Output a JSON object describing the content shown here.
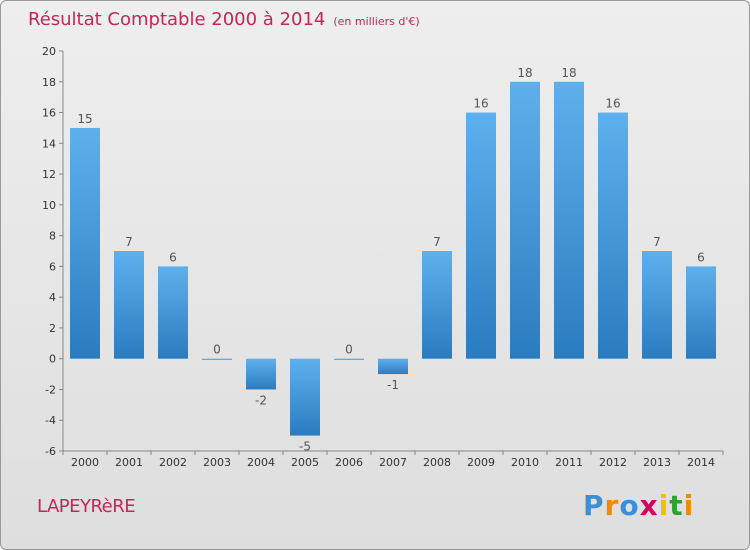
{
  "title": {
    "main": "Résultat Comptable 2000 à 2014",
    "unit": "(en milliers d'€)"
  },
  "commune": "LAPEYRèRE",
  "logo": {
    "text": "Proxiti",
    "letters": [
      "P",
      "r",
      "o",
      "x",
      "i",
      "t",
      "i"
    ],
    "colors": [
      "#3a8fd6",
      "#f08a00",
      "#3a8fd6",
      "#d4005b",
      "#f0c000",
      "#30a030",
      "#f08a00"
    ]
  },
  "colors": {
    "bar_top": "#5eb0ec",
    "bar_bottom": "#2a7cc0",
    "title": "#c0275a"
  },
  "chart_data": {
    "type": "bar",
    "title": "Résultat Comptable 2000 à 2014",
    "ylabel": "(en milliers d'€)",
    "xlabel": "",
    "categories": [
      "2000",
      "2001",
      "2002",
      "2003",
      "2004",
      "2005",
      "2006",
      "2007",
      "2008",
      "2009",
      "2010",
      "2011",
      "2012",
      "2013",
      "2014"
    ],
    "values": [
      15,
      7,
      6,
      0,
      -2,
      -5,
      0,
      -1,
      7,
      16,
      18,
      18,
      16,
      7,
      6
    ],
    "ylim": [
      -6,
      20
    ],
    "yticks": [
      -6,
      -4,
      -2,
      0,
      2,
      4,
      6,
      8,
      10,
      12,
      14,
      16,
      18,
      20
    ],
    "grid": false
  }
}
